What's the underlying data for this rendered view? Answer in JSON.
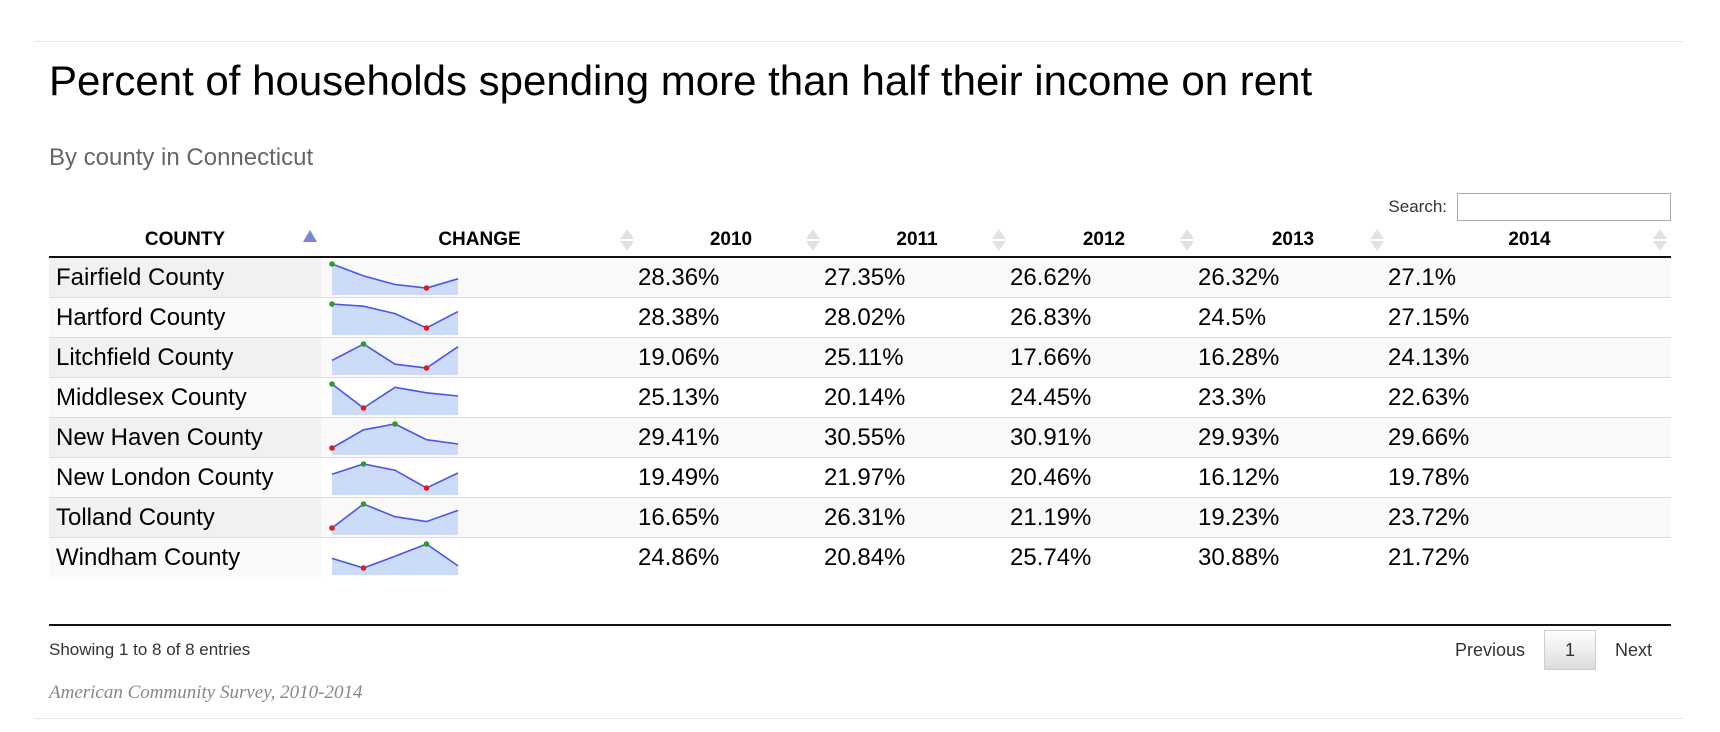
{
  "title": "Percent of households spending more than half their income on rent",
  "subtitle": "By county in Connecticut",
  "search": {
    "label": "Search:",
    "value": ""
  },
  "table": {
    "columns": [
      "COUNTY",
      "CHANGE",
      "2010",
      "2011",
      "2012",
      "2013",
      "2014"
    ],
    "sorted_column": "COUNTY",
    "sort_direction": "ascending",
    "rows": [
      {
        "county": "Fairfield County",
        "values": [
          "28.36%",
          "27.35%",
          "26.62%",
          "26.32%",
          "27.1%"
        ],
        "change": [
          28.36,
          27.35,
          26.62,
          26.32,
          27.1
        ]
      },
      {
        "county": "Hartford County",
        "values": [
          "28.38%",
          "28.02%",
          "26.83%",
          "24.5%",
          "27.15%"
        ],
        "change": [
          28.38,
          28.02,
          26.83,
          24.5,
          27.15
        ]
      },
      {
        "county": "Litchfield County",
        "values": [
          "19.06%",
          "25.11%",
          "17.66%",
          "16.28%",
          "24.13%"
        ],
        "change": [
          19.06,
          25.11,
          17.66,
          16.28,
          24.13
        ]
      },
      {
        "county": "Middlesex County",
        "values": [
          "25.13%",
          "20.14%",
          "24.45%",
          "23.3%",
          "22.63%"
        ],
        "change": [
          25.13,
          20.14,
          24.45,
          23.3,
          22.63
        ]
      },
      {
        "county": "New Haven County",
        "values": [
          "29.41%",
          "30.55%",
          "30.91%",
          "29.93%",
          "29.66%"
        ],
        "change": [
          29.41,
          30.55,
          30.91,
          29.93,
          29.66
        ]
      },
      {
        "county": "New London County",
        "values": [
          "19.49%",
          "21.97%",
          "20.46%",
          "16.12%",
          "19.78%"
        ],
        "change": [
          19.49,
          21.97,
          20.46,
          16.12,
          19.78
        ]
      },
      {
        "county": "Tolland County",
        "values": [
          "16.65%",
          "26.31%",
          "21.19%",
          "19.23%",
          "23.72%"
        ],
        "change": [
          16.65,
          26.31,
          21.19,
          19.23,
          23.72
        ]
      },
      {
        "county": "Windham County",
        "values": [
          "24.86%",
          "20.84%",
          "25.74%",
          "30.88%",
          "21.72%"
        ],
        "change": [
          24.86,
          20.84,
          25.74,
          30.88,
          21.72
        ]
      }
    ]
  },
  "footer": {
    "info": "Showing 1 to 8 of 8 entries",
    "previous": "Previous",
    "current_page": "1",
    "next": "Next"
  },
  "source": "American Community Survey, 2010-2014",
  "colors": {
    "sparkline_line": "#4a55e8",
    "sparkline_fill": "#ccdcf8",
    "sparkline_max": "#2e9a2e",
    "sparkline_min": "#e01c1c",
    "sort_active": "#7c83d9"
  }
}
